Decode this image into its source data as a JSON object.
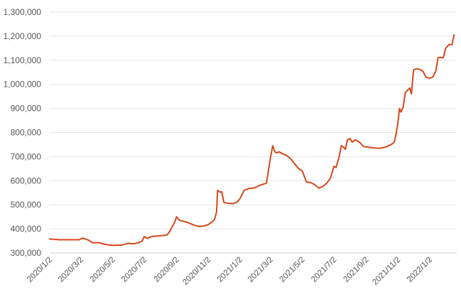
{
  "chart_data": {
    "type": "line",
    "title": "",
    "xlabel": "",
    "ylabel": "",
    "ylim": [
      300000,
      1300000
    ],
    "y_ticks": [
      300000,
      400000,
      500000,
      600000,
      700000,
      800000,
      900000,
      1000000,
      1100000,
      1200000,
      1300000
    ],
    "y_tick_labels": [
      "300,000",
      "400,000",
      "500,000",
      "600,000",
      "700,000",
      "800,000",
      "900,000",
      "1,000,000",
      "1,100,000",
      "1,200,000",
      "1,300,000"
    ],
    "x_tick_labels": [
      "2020/1/2",
      "2020/3/2",
      "2020/5/2",
      "2020/7/2",
      "2020/9/2",
      "2020/11/2",
      "2021/1/2",
      "2021/3/2",
      "2021/5/2",
      "2021/7/2",
      "2021/9/2",
      "2021/11/2",
      "2022/1/2"
    ],
    "grid": "horizontal",
    "line_color": "#d9481c",
    "grid_color": "#e6e6e6",
    "series": [
      {
        "x": [
          "2020/1/2",
          "2020/1/20",
          "2020/2/10",
          "2020/2/28",
          "2020/3/5",
          "2020/3/15",
          "2020/3/25",
          "2020/4/5",
          "2020/4/15",
          "2020/4/25",
          "2020/5/5",
          "2020/5/20",
          "2020/6/1",
          "2020/6/10",
          "2020/6/20",
          "2020/6/28",
          "2020/7/2",
          "2020/7/8",
          "2020/7/15",
          "2020/7/25",
          "2020/8/5",
          "2020/8/15",
          "2020/8/20",
          "2020/8/25",
          "2020/8/30",
          "2020/9/2",
          "2020/9/8",
          "2020/9/15",
          "2020/9/25",
          "2020/10/5",
          "2020/10/15",
          "2020/10/25",
          "2020/11/2",
          "2020/11/10",
          "2020/11/14",
          "2020/11/18",
          "2020/11/20",
          "2020/11/25",
          "2020/11/28",
          "2020/12/2",
          "2020/12/10",
          "2020/12/20",
          "2020/12/28",
          "2021/1/2",
          "2021/1/10",
          "2021/1/20",
          "2021/1/30",
          "2021/2/8",
          "2021/2/15",
          "2021/2/22",
          "2021/3/2",
          "2021/3/6",
          "2021/3/10",
          "2021/3/14",
          "2021/3/18",
          "2021/3/25",
          "2021/4/2",
          "2021/4/10",
          "2021/4/18",
          "2021/4/25",
          "2021/5/2",
          "2021/5/10",
          "2021/5/18",
          "2021/5/25",
          "2021/6/2",
          "2021/6/10",
          "2021/6/18",
          "2021/6/25",
          "2021/7/2",
          "2021/7/6",
          "2021/7/12",
          "2021/7/16",
          "2021/7/20",
          "2021/7/24",
          "2021/7/28",
          "2021/8/2",
          "2021/8/6",
          "2021/8/12",
          "2021/8/20",
          "2021/8/28",
          "2021/9/2",
          "2021/9/10",
          "2021/9/20",
          "2021/9/30",
          "2021/10/10",
          "2021/10/20",
          "2021/10/26",
          "2021/10/30",
          "2021/11/2",
          "2021/11/5",
          "2021/11/8",
          "2021/11/12",
          "2021/11/16",
          "2021/11/20",
          "2021/11/25",
          "2021/11/28",
          "2021/12/2",
          "2021/12/8",
          "2021/12/14",
          "2021/12/20",
          "2021/12/26",
          "2022/1/2",
          "2022/1/8",
          "2022/1/14",
          "2022/1/18",
          "2022/1/22",
          "2022/1/28",
          "2022/2/2",
          "2022/2/8",
          "2022/2/14",
          "2022/2/18"
        ],
        "values": [
          358000,
          355000,
          355000,
          355000,
          362000,
          355000,
          342000,
          343000,
          337000,
          333000,
          332000,
          333000,
          340000,
          338000,
          342000,
          350000,
          368000,
          360000,
          368000,
          370000,
          372000,
          375000,
          390000,
          410000,
          430000,
          450000,
          435000,
          432000,
          425000,
          416000,
          410000,
          412000,
          418000,
          430000,
          438000,
          470000,
          560000,
          552000,
          555000,
          510000,
          506000,
          505000,
          512000,
          525000,
          560000,
          568000,
          570000,
          580000,
          585000,
          590000,
          700000,
          745000,
          720000,
          715000,
          720000,
          712000,
          705000,
          690000,
          668000,
          650000,
          640000,
          595000,
          592000,
          585000,
          570000,
          575000,
          590000,
          610000,
          660000,
          655000,
          700000,
          745000,
          740000,
          730000,
          770000,
          775000,
          760000,
          770000,
          760000,
          742000,
          740000,
          738000,
          735000,
          735000,
          740000,
          750000,
          760000,
          800000,
          840000,
          900000,
          885000,
          905000,
          965000,
          975000,
          985000,
          960000,
          1060000,
          1065000,
          1062000,
          1055000,
          1030000,
          1025000,
          1030000,
          1055000,
          1110000,
          1112000,
          1110000,
          1150000,
          1165000,
          1165000,
          1205000
        ]
      }
    ]
  }
}
